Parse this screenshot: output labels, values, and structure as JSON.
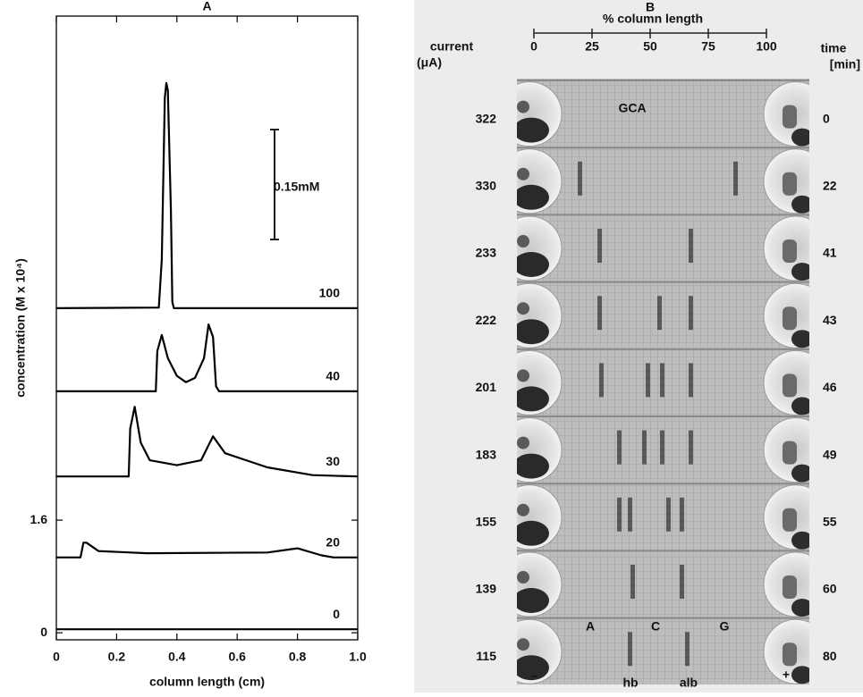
{
  "chart_data": {
    "type": "line",
    "title": "A",
    "xlabel": "column length (cm)",
    "ylabel": "concentration (M x 10⁴)",
    "xlim": [
      0,
      1
    ],
    "xticks": [
      0,
      0.2,
      0.4,
      0.6,
      0.8,
      {
        "value": 1,
        "label": "1.0"
      }
    ],
    "ylim": [
      -0.1,
      8.76
    ],
    "yticks": [
      0,
      1.6
    ],
    "annotation": "0.15mM",
    "series": [
      {
        "name": "100",
        "color": "#000000",
        "x": [
          0,
          0.34,
          0.35,
          0.36,
          0.365,
          0.37,
          0.38,
          0.385,
          0.39,
          1.0
        ],
        "values": [
          4.61,
          4.62,
          5.3,
          7.6,
          7.81,
          7.7,
          6.0,
          4.7,
          4.61,
          4.61
        ]
      },
      {
        "name": "40",
        "color": "#000000",
        "x": [
          0,
          0.33,
          0.335,
          0.35,
          0.37,
          0.4,
          0.43,
          0.46,
          0.49,
          0.505,
          0.52,
          0.53,
          0.54,
          1.0
        ],
        "values": [
          3.43,
          3.43,
          4.0,
          4.23,
          3.9,
          3.65,
          3.56,
          3.62,
          3.9,
          4.38,
          4.2,
          3.5,
          3.43,
          3.43
        ]
      },
      {
        "name": "30",
        "color": "#000000",
        "x": [
          0,
          0.24,
          0.245,
          0.26,
          0.28,
          0.31,
          0.4,
          0.48,
          0.52,
          0.56,
          0.7,
          0.85,
          1.0
        ],
        "values": [
          2.22,
          2.22,
          2.9,
          3.21,
          2.7,
          2.45,
          2.38,
          2.45,
          2.79,
          2.55,
          2.35,
          2.24,
          2.22
        ]
      },
      {
        "name": "20",
        "color": "#000000",
        "x": [
          0,
          0.08,
          0.09,
          0.1,
          0.14,
          0.3,
          0.7,
          0.8,
          0.88,
          0.92,
          1.0
        ],
        "values": [
          1.07,
          1.07,
          1.28,
          1.28,
          1.16,
          1.13,
          1.14,
          1.2,
          1.1,
          1.07,
          1.07
        ]
      },
      {
        "name": "0",
        "color": "#000000",
        "x": [
          0,
          1.0
        ],
        "values": [
          0.05,
          0.05
        ]
      }
    ]
  },
  "panel_b": {
    "title": "B",
    "scale_title": "% column length",
    "scale_ticks": [
      0,
      25,
      50,
      75,
      100
    ],
    "left_header": [
      "current",
      "(μA)"
    ],
    "right_header": [
      "time",
      "[min]"
    ],
    "rows": [
      {
        "current": 322,
        "time": 0
      },
      {
        "current": 330,
        "time": 22
      },
      {
        "current": 233,
        "time": 41
      },
      {
        "current": 222,
        "time": 43
      },
      {
        "current": 201,
        "time": 46
      },
      {
        "current": 183,
        "time": 49
      },
      {
        "current": 155,
        "time": 55
      },
      {
        "current": 139,
        "time": 60
      },
      {
        "current": 115,
        "time": 80
      }
    ],
    "photo_labels": {
      "top": "GCA",
      "zones": [
        "A",
        "C",
        "G"
      ]
    },
    "bottom_labels": {
      "cathode": "−",
      "hb": "hb",
      "alb": "alb",
      "anode": "+"
    }
  }
}
